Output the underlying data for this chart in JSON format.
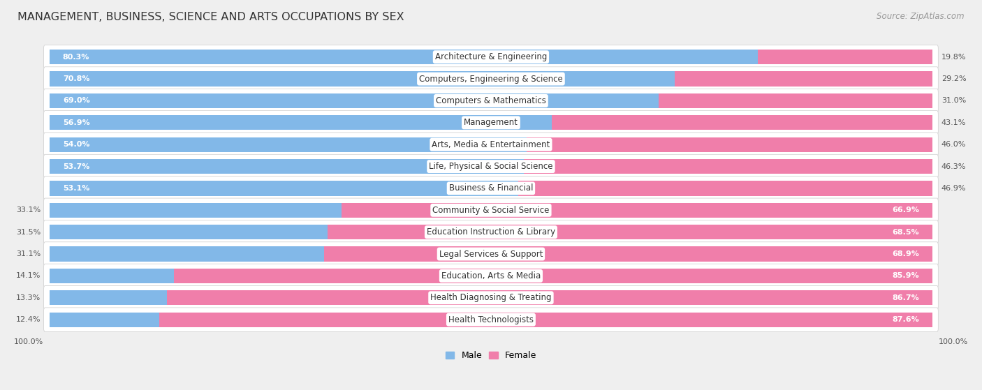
{
  "title": "MANAGEMENT, BUSINESS, SCIENCE AND ARTS OCCUPATIONS BY SEX",
  "source": "Source: ZipAtlas.com",
  "categories": [
    "Architecture & Engineering",
    "Computers, Engineering & Science",
    "Computers & Mathematics",
    "Management",
    "Arts, Media & Entertainment",
    "Life, Physical & Social Science",
    "Business & Financial",
    "Community & Social Service",
    "Education Instruction & Library",
    "Legal Services & Support",
    "Education, Arts & Media",
    "Health Diagnosing & Treating",
    "Health Technologists"
  ],
  "male_pct": [
    80.3,
    70.8,
    69.0,
    56.9,
    54.0,
    53.7,
    53.1,
    33.1,
    31.5,
    31.1,
    14.1,
    13.3,
    12.4
  ],
  "female_pct": [
    19.8,
    29.2,
    31.0,
    43.1,
    46.0,
    46.3,
    46.9,
    66.9,
    68.5,
    68.9,
    85.9,
    86.7,
    87.6
  ],
  "male_color": "#82B8E8",
  "female_color": "#F07EAA",
  "male_label": "Male",
  "female_label": "Female",
  "bg_color": "#EFEFEF",
  "row_bg_color": "#FFFFFF",
  "bar_height": 0.68,
  "title_fontsize": 11.5,
  "label_fontsize": 8.5,
  "pct_fontsize": 8.0,
  "source_fontsize": 8.5
}
